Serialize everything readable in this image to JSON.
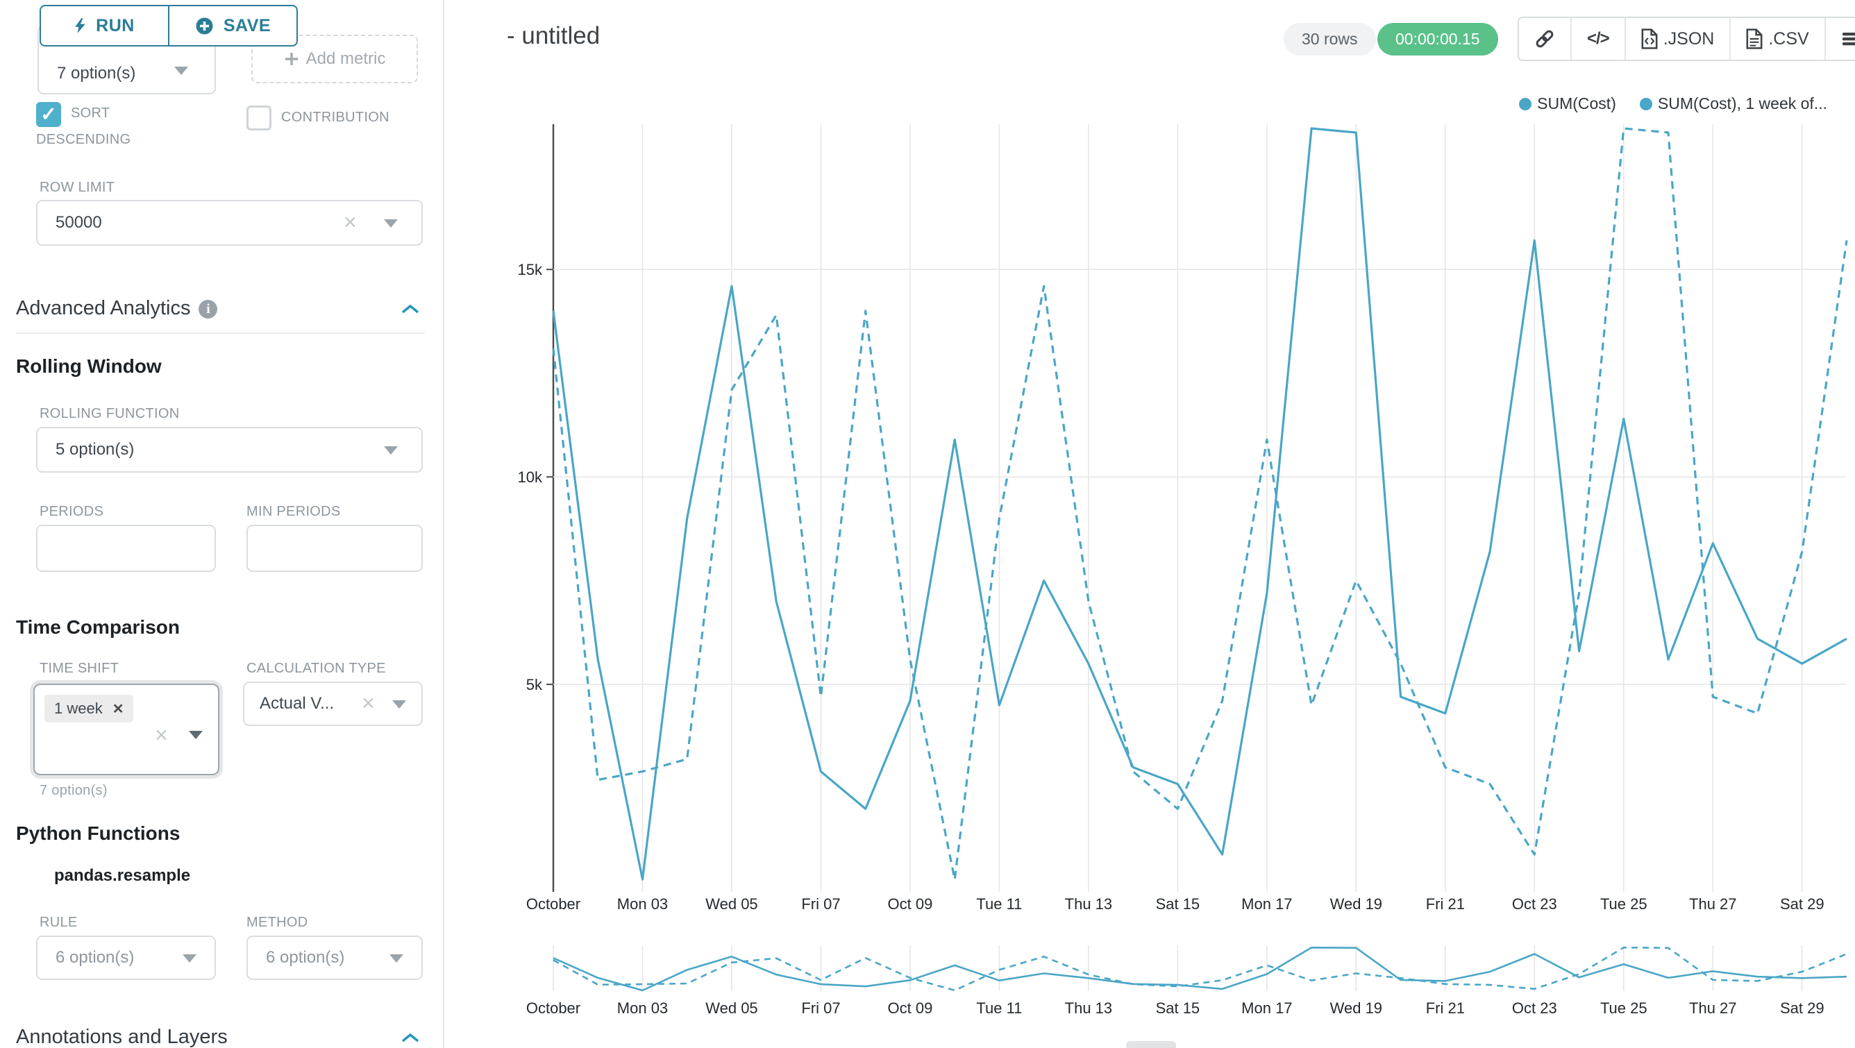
{
  "sidebar": {
    "run_label": "RUN",
    "save_label": "SAVE",
    "metric_select_value": "7 option(s)",
    "add_metric_label": "Add metric",
    "sort_descending_label_line1": "SORT",
    "sort_descending_label_line2": "DESCENDING",
    "sort_descending_checked": "✓",
    "contribution_label": "CONTRIBUTION",
    "row_limit_label": "ROW LIMIT",
    "row_limit_value": "50000",
    "advanced_analytics_title": "Advanced Analytics",
    "rolling_window": {
      "title": "Rolling Window",
      "rolling_function_label": "ROLLING FUNCTION",
      "rolling_function_value": "5 option(s)",
      "periods_label": "PERIODS",
      "min_periods_label": "MIN PERIODS"
    },
    "time_comparison": {
      "title": "Time Comparison",
      "time_shift_label": "TIME SHIFT",
      "time_shift_tag": "1 week",
      "time_shift_hint": "7 option(s)",
      "calculation_type_label": "CALCULATION TYPE",
      "calculation_type_value": "Actual V..."
    },
    "python_functions": {
      "title": "Python Functions",
      "subtitle": "pandas.resample",
      "rule_label": "RULE",
      "rule_value": "6 option(s)",
      "method_label": "METHOD",
      "method_value": "6 option(s)"
    },
    "annotations_title": "Annotations and Layers"
  },
  "header": {
    "title": "- untitled",
    "rows_badge": "30 rows",
    "timer": "00:00:00.15",
    "json_label": ".JSON",
    "csv_label": ".CSV"
  },
  "chart_data": {
    "type": "line",
    "title": "- untitled",
    "color": "#4aa6c6",
    "grid": true,
    "legend_position": "top-right",
    "x_axis": "date (October, daily)",
    "days": [
      1,
      2,
      3,
      4,
      5,
      6,
      7,
      8,
      9,
      10,
      11,
      12,
      13,
      14,
      15,
      16,
      17,
      18,
      19,
      20,
      21,
      22,
      23,
      24,
      25,
      26,
      27,
      28,
      29,
      30
    ],
    "x_ticks": [
      {
        "day": 1,
        "label": "October"
      },
      {
        "day": 3,
        "label": "Mon 03"
      },
      {
        "day": 5,
        "label": "Wed 05"
      },
      {
        "day": 7,
        "label": "Fri 07"
      },
      {
        "day": 9,
        "label": "Oct 09"
      },
      {
        "day": 11,
        "label": "Tue 11"
      },
      {
        "day": 13,
        "label": "Thu 13"
      },
      {
        "day": 15,
        "label": "Sat 15"
      },
      {
        "day": 17,
        "label": "Mon 17"
      },
      {
        "day": 19,
        "label": "Wed 19"
      },
      {
        "day": 21,
        "label": "Fri 21"
      },
      {
        "day": 23,
        "label": "Oct 23"
      },
      {
        "day": 25,
        "label": "Tue 25"
      },
      {
        "day": 27,
        "label": "Thu 27"
      },
      {
        "day": 29,
        "label": "Sat 29"
      }
    ],
    "ylim": [
      0,
      18500
    ],
    "y_ticks": [
      {
        "value": 5000,
        "label": "5k"
      },
      {
        "value": 10000,
        "label": "10k"
      },
      {
        "value": 15000,
        "label": "15k"
      }
    ],
    "series": [
      {
        "name": "SUM(Cost)",
        "dashed": false,
        "values": [
          14000,
          5600,
          300,
          9000,
          14600,
          7000,
          2900,
          2000,
          4600,
          10900,
          4500,
          7500,
          5500,
          3000,
          2600,
          900,
          7200,
          18400,
          18300,
          4700,
          4300,
          8200,
          15700,
          5800,
          11400,
          5600,
          8400,
          6100,
          5500,
          6100
        ]
      },
      {
        "name": "SUM(Cost), 1 week of...",
        "dashed": true,
        "values": [
          13100,
          2700,
          2900,
          3200,
          12100,
          13900,
          4700,
          14000,
          5600,
          300,
          9000,
          14600,
          7000,
          2900,
          2000,
          4600,
          10900,
          4500,
          7500,
          5500,
          3000,
          2600,
          900,
          7200,
          18400,
          18300,
          4700,
          4300,
          8200,
          15700
        ]
      }
    ]
  }
}
